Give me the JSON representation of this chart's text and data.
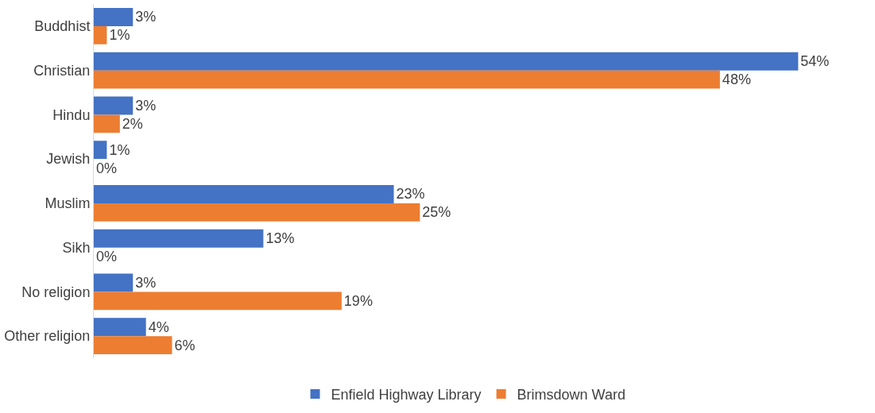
{
  "chart_data": {
    "type": "bar",
    "orientation": "horizontal",
    "categories": [
      "Buddhist",
      "Christian",
      "Hindu",
      "Jewish",
      "Muslim",
      "Sikh",
      "No religion",
      "Other religion"
    ],
    "series": [
      {
        "name": "Enfield Highway Library",
        "color": "#4472c4",
        "values": [
          3,
          54,
          3,
          1,
          23,
          13,
          3,
          4
        ],
        "value_labels": [
          "3%",
          "54%",
          "3%",
          "1%",
          "23%",
          "13%",
          "3%",
          "4%"
        ]
      },
      {
        "name": "Brimsdown Ward",
        "color": "#ed7d31",
        "values": [
          1,
          48,
          2,
          0,
          25,
          0,
          19,
          6
        ],
        "value_labels": [
          "1%",
          "48%",
          "2%",
          "0%",
          "25%",
          "0%",
          "19%",
          "6%"
        ]
      }
    ],
    "grid": false,
    "legend": "bottom",
    "tick_labels": "y"
  }
}
